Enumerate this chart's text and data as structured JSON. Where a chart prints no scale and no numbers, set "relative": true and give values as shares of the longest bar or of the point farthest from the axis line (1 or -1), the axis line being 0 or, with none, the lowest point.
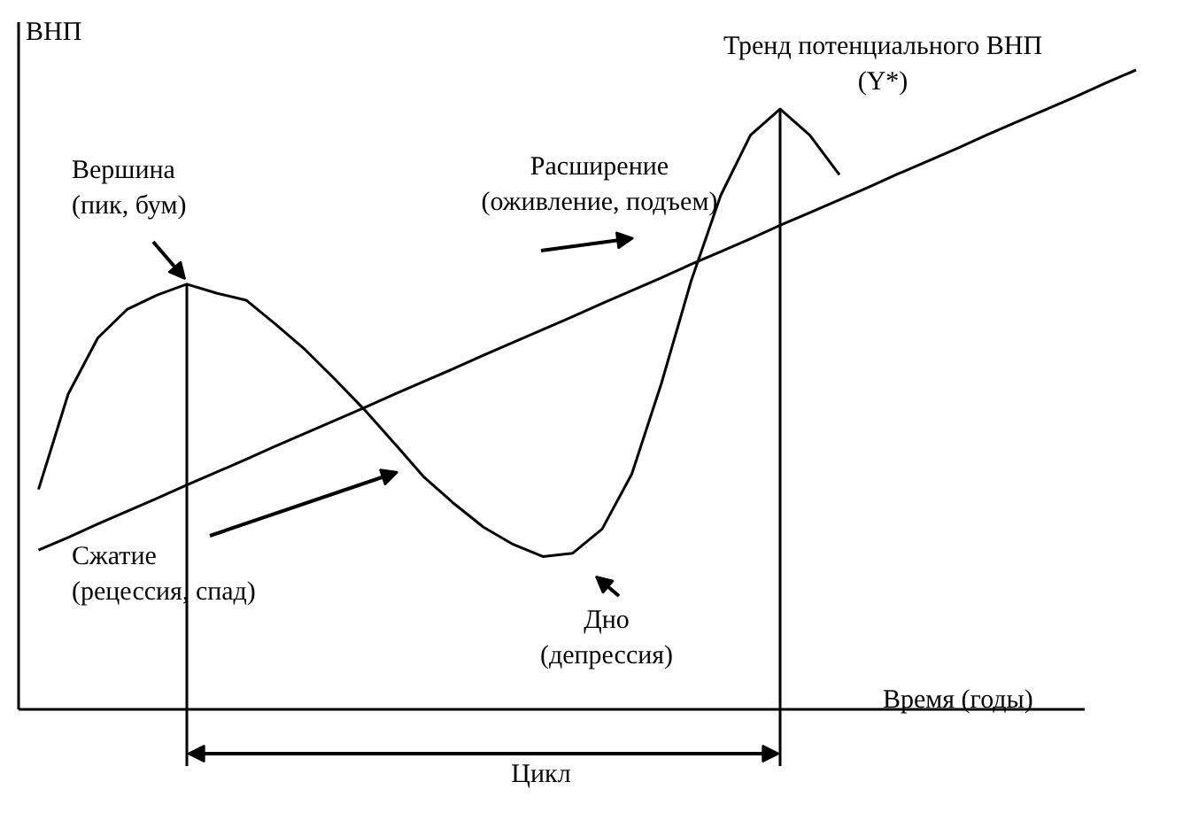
{
  "chart_data": {
    "type": "line",
    "relative": true,
    "ylabel": "ВНП",
    "xlabel": "Время (годы)",
    "annotations": [
      "Тренд потенциального ВНП\n(Y*)",
      "Вершина\n(пик, бум)",
      "Расширение\n(оживление, подъем)",
      "Сжатие\n(рецессия, спад)",
      "Дно\n(депрессия)",
      "Цикл"
    ],
    "categories": [
      null,
      null,
      null,
      null,
      null,
      null,
      null,
      null,
      null,
      null,
      null,
      null,
      null,
      null,
      null,
      null,
      null,
      null,
      null,
      null,
      null,
      null,
      null,
      null,
      null,
      null,
      null,
      null,
      null,
      null,
      null,
      null,
      null,
      null,
      null,
      null,
      null,
      null
    ],
    "series": [
      {
        "color": "#000000",
        "values": [
          0.344,
          0.493,
          0.581,
          0.626,
          0.648,
          0.665,
          0.651,
          0.64,
          0.602,
          0.562,
          0.516,
          0.468,
          0.416,
          0.363,
          0.322,
          0.285,
          0.258,
          0.239,
          0.244,
          0.282,
          0.368,
          0.51,
          0.67,
          0.804,
          0.898,
          0.939,
          0.898,
          0.836,
          null,
          null,
          null,
          null,
          null,
          null,
          null,
          null,
          null,
          null
        ]
      },
      {
        "color": "#000000",
        "values": [
          0.249,
          0.269,
          0.29,
          0.31,
          0.33,
          0.351,
          0.371,
          0.391,
          0.412,
          0.432,
          0.452,
          0.472,
          0.493,
          0.513,
          0.533,
          0.554,
          0.574,
          0.594,
          0.614,
          0.635,
          0.655,
          0.675,
          0.696,
          0.716,
          0.736,
          0.757,
          0.777,
          0.797,
          0.817,
          0.838,
          0.858,
          0.878,
          0.899,
          0.919,
          0.939,
          0.959,
          0.98,
          1.0
        ]
      }
    ],
    "marker": "none",
    "line_style": "solid",
    "grid": false
  }
}
